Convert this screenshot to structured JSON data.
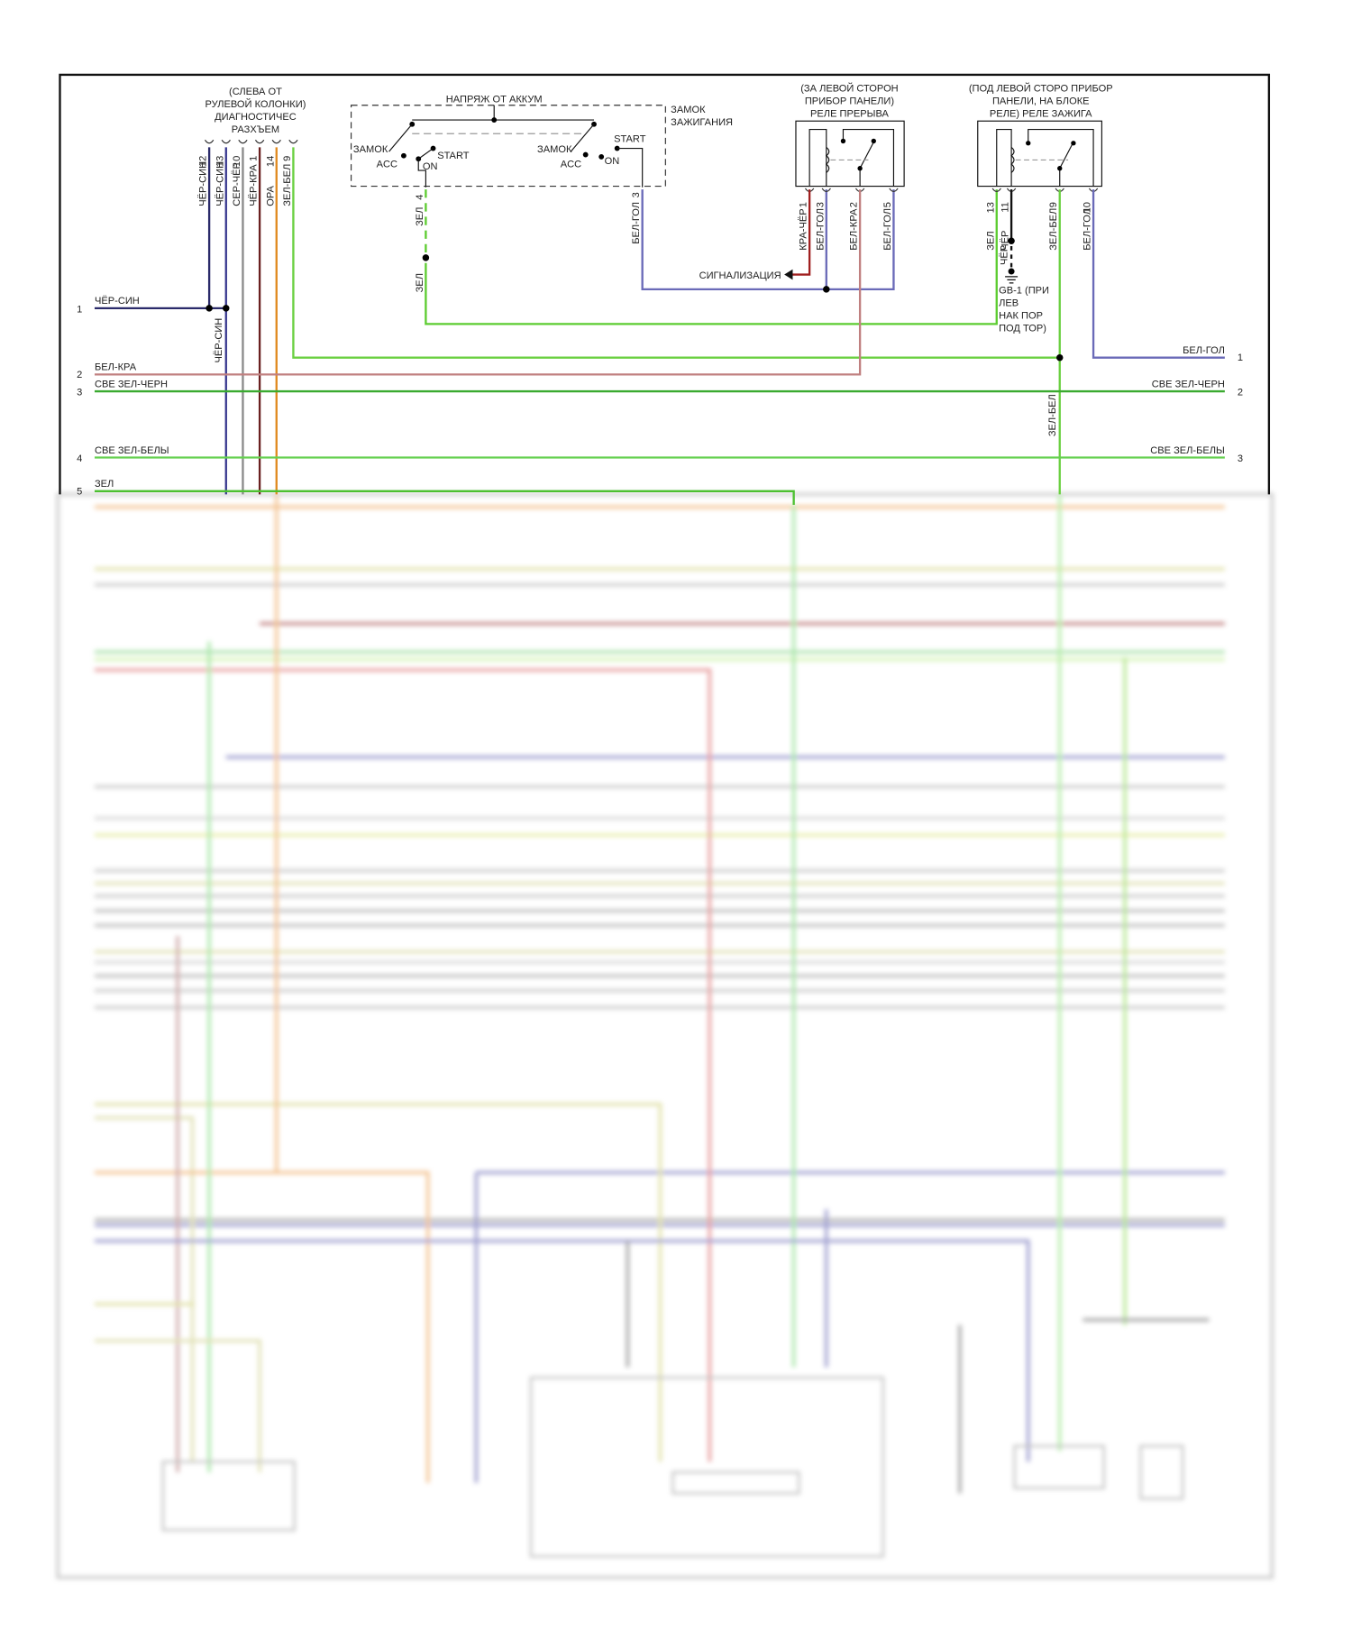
{
  "diagnostic_connector": {
    "label": [
      "(СЛЕВА ОТ",
      "РУЛЕВОЙ КОЛОНКИ)",
      "ДИАГНОСТИЧЕС",
      "РАЗХЪЕМ"
    ],
    "pins": [
      {
        "pin": "12",
        "wire": "ЧЁР-СИН",
        "color": "#2a2a6a"
      },
      {
        "pin": "13",
        "wire": "ЧЁР-СИН",
        "color": "#3a3a90"
      },
      {
        "pin": "10",
        "wire": "СЕР-ЧЁР",
        "color": "#8a8a8a"
      },
      {
        "pin": "1",
        "wire": "ЧЁР-КРА",
        "color": "#6a2020"
      },
      {
        "pin": "14",
        "wire": "ОРА",
        "color": "#e08a20"
      },
      {
        "pin": "9",
        "wire": "ЗЕЛ-БЕЛ",
        "color": "#6ad040"
      }
    ],
    "splice_wire": "ЧЁР-СИН"
  },
  "ignition_switch": {
    "supply": "НАПРЯЖ ОТ АККУМ",
    "title": [
      "ЗАМОК",
      "ЗАЖИГАНИЯ"
    ],
    "left": {
      "lock": "ЗАМОК",
      "acc": "ACC",
      "start": "START",
      "on": "ON"
    },
    "right": {
      "lock": "ЗАМОК",
      "acc": "ACC",
      "start": "START",
      "on": "ON"
    },
    "pin4": {
      "pin": "4",
      "wire_top": "ЗЕЛ",
      "wire_bottom": "ЗЕЛ"
    },
    "pin3": {
      "pin": "3",
      "wire": "БЕЛ-ГОЛ"
    }
  },
  "interrupt_relay": {
    "label": [
      "(ЗА ЛЕВОЙ СТОРОН",
      "ПРИБОР ПАНЕЛИ)",
      "РЕЛЕ ПРЕРЫВА"
    ],
    "pins": [
      {
        "pin": "1",
        "wire": "КРА-ЧЁР"
      },
      {
        "pin": "3",
        "wire": "БЕЛ-ГОЛ"
      },
      {
        "pin": "2",
        "wire": "БЕЛ-КРА"
      },
      {
        "pin": "5",
        "wire": "БЕЛ-ГОЛ"
      }
    ],
    "alarm": "СИГНАЛИЗАЦИЯ"
  },
  "ignition_relay": {
    "label": [
      "(ПОД ЛЕВОЙ СТОРО ПРИБОР",
      "ПАНЕЛИ, НА БЛОКЕ",
      "РЕЛЕ) РЕЛЕ ЗАЖИГА"
    ],
    "pins": [
      {
        "pin": "13",
        "wire": "ЗЕЛ"
      },
      {
        "pin": "11",
        "wire": "ЧЁР"
      },
      {
        "pin": "9",
        "wire": "ЗЕЛ-БЕЛ"
      },
      {
        "pin": "10",
        "wire": "БЕЛ-ГОЛ"
      }
    ],
    "ground_wire": "ЧЁР",
    "ground": [
      "GB-1 (ПРИ",
      "ЛЕВ",
      "НАК ПОР",
      "ПОД ТОР)"
    ],
    "vertical_wire": "ЗЕЛ-БЕЛ"
  },
  "left_wires": [
    {
      "num": "1",
      "label": "ЧЁР-СИН"
    },
    {
      "num": "2",
      "label": "БЕЛ-КРА"
    },
    {
      "num": "3",
      "label": "СВЕ ЗЕЛ-ЧЕРН"
    },
    {
      "num": "4",
      "label": "СВЕ ЗЕЛ-БЕЛЫ"
    },
    {
      "num": "5",
      "label": "ЗЕЛ"
    }
  ],
  "right_wires": [
    {
      "num": "1",
      "label": "БЕЛ-ГОЛ"
    },
    {
      "num": "2",
      "label": "СВЕ ЗЕЛ-ЧЕРН"
    },
    {
      "num": "3",
      "label": "СВЕ ЗЕЛ-БЕЛЫ"
    }
  ],
  "colors": {
    "frame": "#111111",
    "green": "#5ccc30",
    "blue": "#6a6ab8",
    "red": "#a02020",
    "pink": "#c08080",
    "orange": "#e08a20"
  }
}
